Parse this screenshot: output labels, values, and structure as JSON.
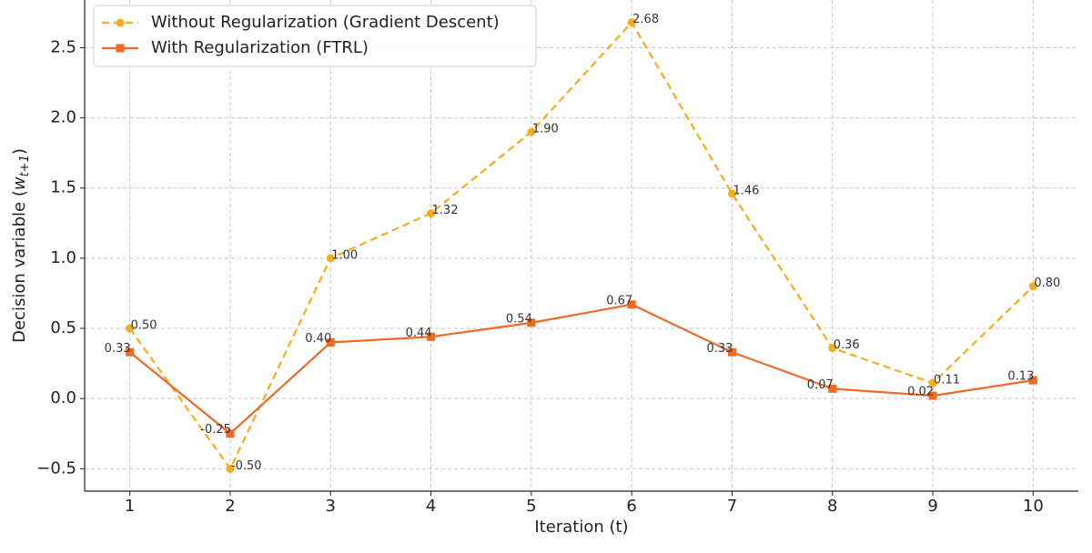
{
  "chart_data": {
    "type": "line",
    "xlabel": "Iteration (t)",
    "ylabel": {
      "text": "Decision variable (",
      "var": "w",
      "sub": "t+1",
      "close": ")"
    },
    "x": [
      1,
      2,
      3,
      4,
      5,
      6,
      7,
      8,
      9,
      10
    ],
    "series": [
      {
        "name": "Without Regularization (Gradient Descent)",
        "color": "#f7ad19",
        "dash": true,
        "marker": "circle",
        "values": [
          0.5,
          -0.5,
          1.0,
          1.32,
          1.9,
          2.68,
          1.46,
          0.36,
          0.11,
          0.8
        ],
        "value_labels": [
          "0.50",
          "-0.50",
          "1.00",
          "1.32",
          "1.90",
          "2.68",
          "1.46",
          "0.36",
          "0.11",
          "0.80"
        ]
      },
      {
        "name": "With Regularization (FTRL)",
        "color": "#f06a25",
        "dash": false,
        "marker": "square",
        "values": [
          0.33,
          -0.25,
          0.4,
          0.44,
          0.54,
          0.67,
          0.33,
          0.07,
          0.02,
          0.13
        ],
        "value_labels": [
          "0.33",
          "-0.25",
          "0.40",
          "0.44",
          "0.54",
          "0.67",
          "0.33",
          "0.07",
          "0.02",
          "0.13"
        ]
      }
    ],
    "xlim": [
      0.55,
      10.45
    ],
    "xticks": [
      1,
      2,
      3,
      4,
      5,
      6,
      7,
      8,
      9,
      10
    ],
    "ylim": [
      -0.66,
      2.84
    ],
    "yticks": [
      {
        "value": -0.5,
        "label": "−0.5"
      },
      {
        "value": 0,
        "label": "0.0"
      },
      0.5,
      {
        "value": 1,
        "label": "1.0"
      },
      1.5,
      {
        "value": 2,
        "label": "2.0"
      },
      2.5
    ],
    "grid": true,
    "legend": "upper left"
  }
}
